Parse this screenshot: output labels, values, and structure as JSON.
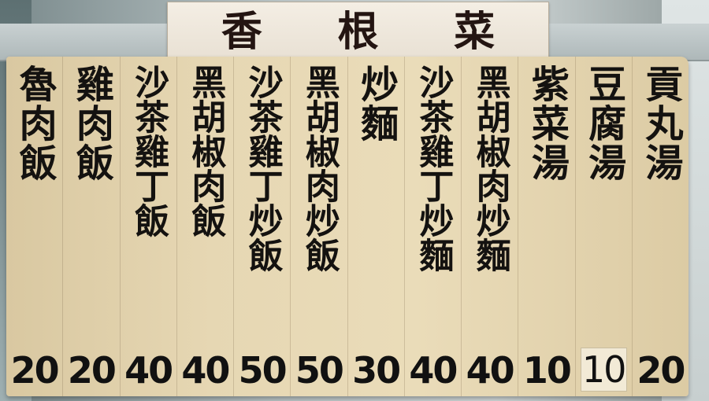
{
  "sign_title": [
    "香",
    "根",
    "菜"
  ],
  "menu": [
    {
      "name": "魯肉飯",
      "price": "20"
    },
    {
      "name": "雞肉飯",
      "price": "20"
    },
    {
      "name": "沙茶雞丁飯",
      "price": "40"
    },
    {
      "name": "黑胡椒肉飯",
      "price": "40"
    },
    {
      "name": "沙茶雞丁炒飯",
      "price": "50"
    },
    {
      "name": "黑胡椒肉炒飯",
      "price": "50"
    },
    {
      "name": "炒麵",
      "price": "30"
    },
    {
      "name": "沙茶雞丁炒麵",
      "price": "40"
    },
    {
      "name": "黑胡椒肉炒麵",
      "price": "40"
    },
    {
      "name": "紫菜湯",
      "price": "10"
    },
    {
      "name": "豆腐湯",
      "price": "10"
    },
    {
      "name": "貢丸湯",
      "price": "20"
    }
  ]
}
